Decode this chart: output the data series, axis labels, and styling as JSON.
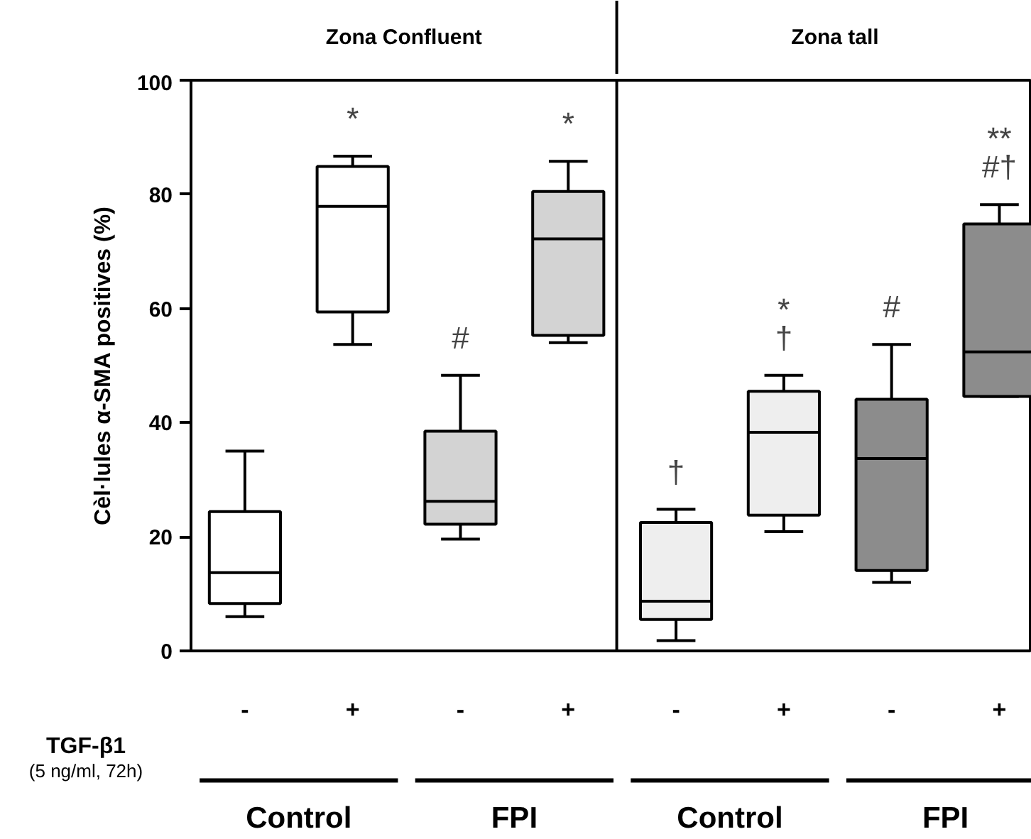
{
  "chart_data": {
    "type": "box",
    "ylabel": "Cèl·lules α-SMA positives (%)",
    "categories": [
      "-",
      "+",
      "-",
      "+",
      "-",
      "+",
      "-",
      "+"
    ],
    "colors": [
      "#ffffff",
      "#ffffff",
      "#d3d3d3",
      "#d3d3d3",
      "#eeeeee",
      "#eeeeee",
      "#8c8c8c",
      "#8c8c8c"
    ],
    "boxes": [
      {
        "low": 6,
        "q1": 8.3,
        "median": 13.7,
        "q3": 24.4,
        "high": 35
      },
      {
        "low": 53.7,
        "q1": 59.4,
        "median": 77.9,
        "q3": 84.9,
        "high": 86.7
      },
      {
        "low": 19.6,
        "q1": 22.2,
        "median": 26.2,
        "q3": 38.5,
        "high": 48.3
      },
      {
        "low": 54,
        "q1": 55.3,
        "median": 72.2,
        "q3": 80.5,
        "high": 85.8
      },
      {
        "low": 1.8,
        "q1": 5.5,
        "median": 8.7,
        "q3": 22.5,
        "high": 24.8
      },
      {
        "low": 20.9,
        "q1": 23.8,
        "median": 38.3,
        "q3": 45.5,
        "high": 48.3
      },
      {
        "low": 12,
        "q1": 14.1,
        "median": 33.7,
        "q3": 44.1,
        "high": 53.7
      },
      {
        "low": 44.6,
        "q1": 44.6,
        "median": 52.4,
        "q3": 74.8,
        "high": 78.2
      }
    ],
    "ylim": [
      0,
      100
    ],
    "yticks": [
      0,
      20,
      40,
      60,
      80,
      100
    ],
    "grid": false,
    "annotations": [
      "Zona Confluent",
      "Zona tall",
      "TGF-β1",
      "(5 ng/ml, 72h)",
      "Control",
      "FPI",
      "Control",
      "FPI",
      "*",
      "#",
      "*",
      "†",
      "*\n†",
      "#",
      "**\n#†"
    ]
  }
}
